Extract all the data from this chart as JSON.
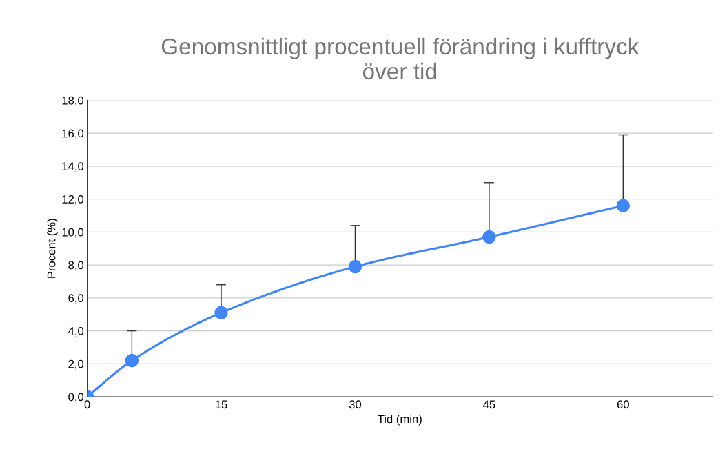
{
  "chart_data": {
    "type": "line",
    "title": "Genomsnittligt procentuell förändring i kufftryck\növer tid",
    "xlabel": "Tid (min)",
    "ylabel": "Procent (%)",
    "x": [
      0,
      5,
      15,
      30,
      45,
      60
    ],
    "series": [
      {
        "color": "#4285f4",
        "values": [
          0.0,
          2.2,
          5.1,
          7.9,
          9.7,
          11.6
        ],
        "errors": [
          null,
          [
            2.2,
            4.0
          ],
          [
            5.1,
            6.8
          ],
          [
            7.9,
            10.4
          ],
          [
            9.7,
            13.0
          ],
          [
            11.6,
            15.9
          ]
        ]
      }
    ],
    "xlim": [
      0,
      70
    ],
    "xticks": [
      0,
      15,
      30,
      45,
      60
    ],
    "ylim": [
      0,
      18
    ],
    "yticks": [
      {
        "value": 0,
        "label": "0,0"
      },
      {
        "value": 2,
        "label": "2,0"
      },
      {
        "value": 4,
        "label": "4,0"
      },
      {
        "value": 6,
        "label": "6,0"
      },
      {
        "value": 8,
        "label": "8,0"
      },
      {
        "value": 10,
        "label": "10,0"
      },
      {
        "value": 12,
        "label": "12,0"
      },
      {
        "value": 14,
        "label": "14,0"
      },
      {
        "value": 16,
        "label": "16,0"
      },
      {
        "value": 18,
        "label": "18,0"
      }
    ],
    "grid": "y",
    "marker": "circle",
    "line_style": "solid"
  }
}
